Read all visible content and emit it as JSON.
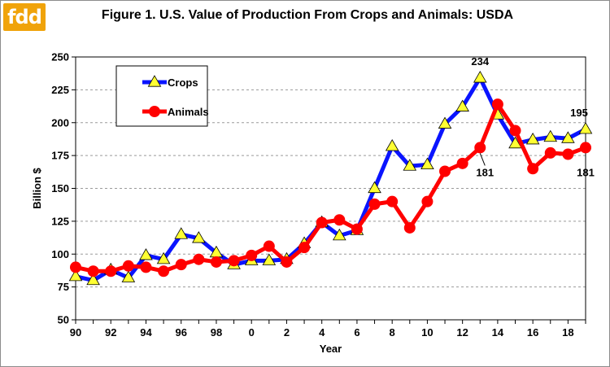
{
  "logo": {
    "text": "fdd"
  },
  "chart_data": {
    "type": "line",
    "title": "Figure 1. U.S. Value of Production From Crops and Animals: USDA",
    "xlabel": "Year",
    "ylabel": "Billion $",
    "ylim": [
      50,
      250
    ],
    "yticks": [
      50,
      75,
      100,
      125,
      150,
      175,
      200,
      225,
      250
    ],
    "xlim": [
      1990,
      2019
    ],
    "xtick_labels": [
      "90",
      "92",
      "94",
      "96",
      "98",
      "0",
      "2",
      "4",
      "6",
      "8",
      "10",
      "12",
      "14",
      "16",
      "18"
    ],
    "grid": "horizontal dashed",
    "legend_placement": "top-left",
    "x": [
      1990,
      1991,
      1992,
      1993,
      1994,
      1995,
      1996,
      1997,
      1998,
      1999,
      2000,
      2001,
      2002,
      2003,
      2004,
      2005,
      2006,
      2007,
      2008,
      2009,
      2010,
      2011,
      2012,
      2013,
      2014,
      2015,
      2016,
      2017,
      2018,
      2019
    ],
    "series": [
      {
        "name": "Crops",
        "color": "#0a14ff",
        "marker": "triangle",
        "marker_color": "#ffff33",
        "values": [
          83,
          80,
          88,
          82,
          99,
          96,
          115,
          112,
          101,
          92,
          95,
          95,
          96,
          108,
          124,
          114,
          118,
          150,
          182,
          167,
          168,
          199,
          212,
          234,
          206,
          184,
          187,
          189,
          188,
          195
        ]
      },
      {
        "name": "Animals",
        "color": "#ff0000",
        "marker": "circle",
        "marker_color": "#ff0000",
        "values": [
          90,
          87,
          87,
          91,
          90,
          87,
          92,
          96,
          94,
          95,
          99,
          106,
          94,
          105,
          124,
          126,
          119,
          138,
          140,
          120,
          140,
          163,
          169,
          181,
          214,
          194,
          165,
          177,
          176,
          181
        ]
      }
    ],
    "annotations": [
      {
        "text": "234",
        "x": 2013,
        "series": "Crops",
        "position": "above"
      },
      {
        "text": "181",
        "x": 2013,
        "series": "Animals",
        "position": "below"
      },
      {
        "text": "195",
        "x": 2019,
        "series": "Crops",
        "position": "above"
      },
      {
        "text": "181",
        "x": 2019,
        "series": "Animals",
        "position": "below"
      }
    ]
  }
}
